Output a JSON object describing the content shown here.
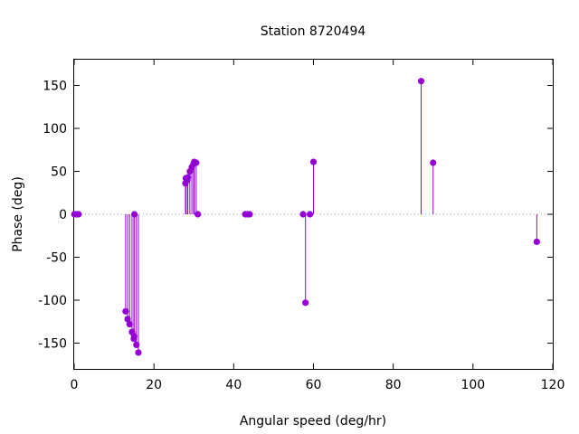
{
  "chart_data": {
    "type": "scatter",
    "style": "impulses with points",
    "title": "Station 8720494",
    "xlabel": "Angular speed (deg/hr)",
    "ylabel": "Phase (deg)",
    "xlim": [
      0,
      120
    ],
    "ylim": [
      -180,
      180
    ],
    "xticks": [
      0,
      20,
      40,
      60,
      80,
      100,
      120
    ],
    "yticks": [
      -150,
      -100,
      -50,
      0,
      50,
      100,
      150
    ],
    "zero_line": true,
    "grid": false,
    "legend": "none",
    "series_color": "#9400d3",
    "points": [
      {
        "x": 0.04,
        "y": 0
      },
      {
        "x": 0.5,
        "y": 0
      },
      {
        "x": 0.8,
        "y": 0
      },
      {
        "x": 1.1,
        "y": 0
      },
      {
        "x": 12.9,
        "y": -113
      },
      {
        "x": 13.4,
        "y": -122
      },
      {
        "x": 13.9,
        "y": -128
      },
      {
        "x": 14.5,
        "y": -137
      },
      {
        "x": 14.96,
        "y": -145
      },
      {
        "x": 15.04,
        "y": -142
      },
      {
        "x": 15.1,
        "y": 0
      },
      {
        "x": 15.6,
        "y": -152
      },
      {
        "x": 16.1,
        "y": -161
      },
      {
        "x": 27.9,
        "y": 36
      },
      {
        "x": 28.0,
        "y": 42
      },
      {
        "x": 28.4,
        "y": 40
      },
      {
        "x": 28.5,
        "y": 43
      },
      {
        "x": 29.0,
        "y": 50
      },
      {
        "x": 29.5,
        "y": 55
      },
      {
        "x": 29.96,
        "y": 59
      },
      {
        "x": 30.1,
        "y": 61
      },
      {
        "x": 30.6,
        "y": 60
      },
      {
        "x": 31.0,
        "y": 0
      },
      {
        "x": 42.9,
        "y": 0
      },
      {
        "x": 43.5,
        "y": 0
      },
      {
        "x": 44.0,
        "y": 0
      },
      {
        "x": 57.4,
        "y": 0
      },
      {
        "x": 58.0,
        "y": -103
      },
      {
        "x": 59.1,
        "y": 0
      },
      {
        "x": 60.0,
        "y": 61
      },
      {
        "x": 87.0,
        "y": 155
      },
      {
        "x": 90.0,
        "y": 60
      },
      {
        "x": 116.0,
        "y": -32
      }
    ]
  }
}
